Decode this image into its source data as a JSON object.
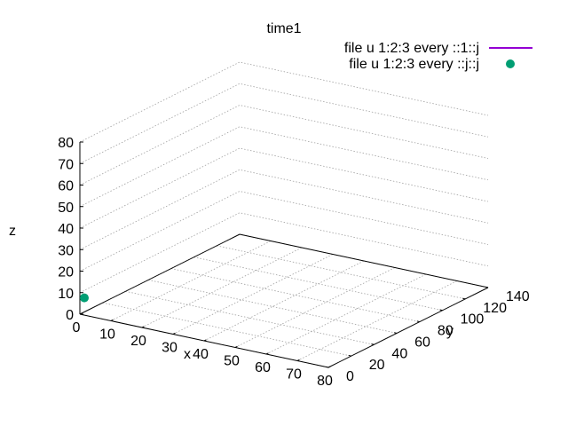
{
  "chart_data": {
    "type": "scatter",
    "title": "time1",
    "xlabel": "x",
    "ylabel": "y",
    "zlabel": "z",
    "xlim": [
      0,
      80
    ],
    "ylim": [
      0,
      140
    ],
    "zlim": [
      0,
      80
    ],
    "xticks": [
      0,
      10,
      20,
      30,
      40,
      50,
      60,
      70,
      80
    ],
    "yticks": [
      0,
      20,
      40,
      60,
      80,
      100,
      120,
      140
    ],
    "zticks": [
      0,
      10,
      20,
      30,
      40,
      50,
      60,
      70,
      80
    ],
    "grid": true,
    "legend_position": "top-right",
    "series": [
      {
        "name": "file u 1:2:3 every ::1::j",
        "style": "line",
        "color": "#9400d3",
        "points": []
      },
      {
        "name": "file u 1:2:3 every ::j::j",
        "style": "points",
        "color": "#009e73",
        "points": [
          [
            0,
            0,
            8
          ]
        ]
      }
    ]
  }
}
